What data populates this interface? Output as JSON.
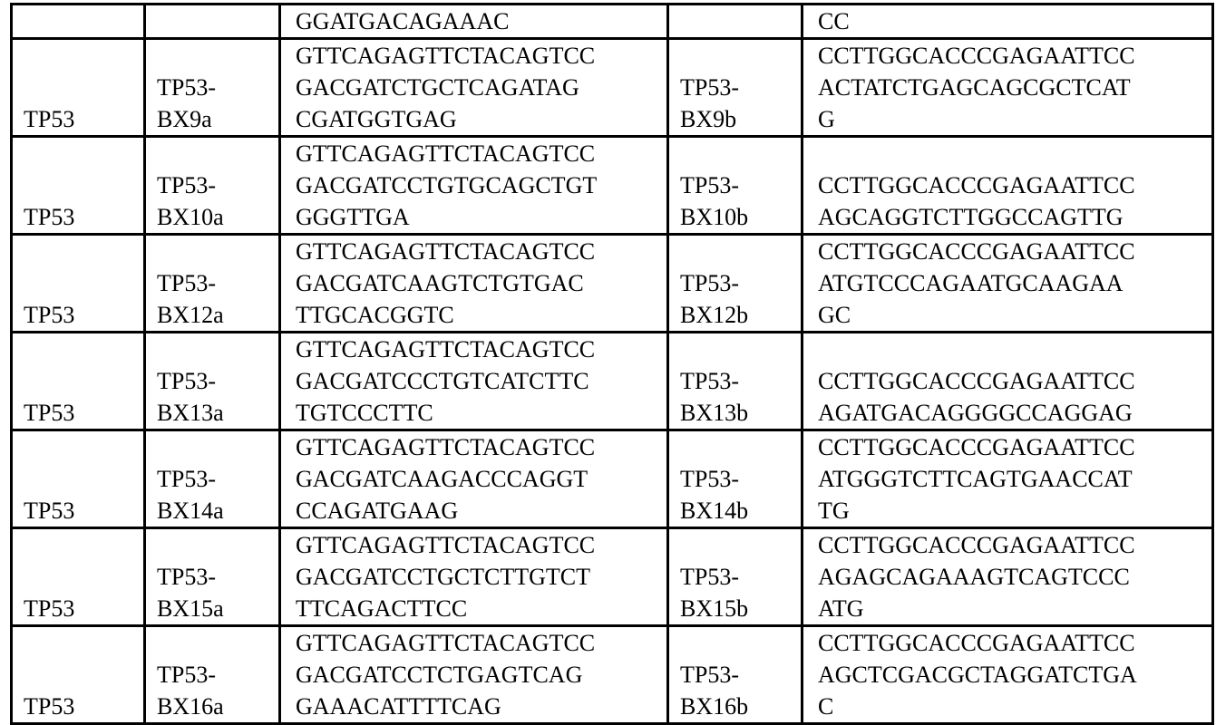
{
  "table": {
    "rows": [
      {
        "gene": "",
        "fwd_name": [],
        "fwd_seq": [
          "GGATGACAGAAAC"
        ],
        "rev_name": [],
        "rev_seq": [
          "CC"
        ]
      },
      {
        "gene": "TP53",
        "fwd_name": [
          "TP53-",
          "BX9a"
        ],
        "fwd_seq": [
          "GTTCAGAGTTCTACAGTCC",
          "GACGATCTGCTCAGATAG",
          "CGATGGTGAG"
        ],
        "rev_name": [
          "TP53-",
          "BX9b"
        ],
        "rev_seq": [
          "CCTTGGCACCCGAGAATTCC",
          "ACTATCTGAGCAGCGCTCAT",
          "G"
        ]
      },
      {
        "gene": "TP53",
        "fwd_name": [
          "TP53-",
          "BX10a"
        ],
        "fwd_seq": [
          "GTTCAGAGTTCTACAGTCC",
          "GACGATCCTGTGCAGCTGT",
          "GGGTTGA"
        ],
        "rev_name": [
          "TP53-",
          "BX10b"
        ],
        "rev_seq": [
          "CCTTGGCACCCGAGAATTCC",
          "AGCAGGTCTTGGCCAGTTG"
        ]
      },
      {
        "gene": "TP53",
        "fwd_name": [
          "TP53-",
          "BX12a"
        ],
        "fwd_seq": [
          "GTTCAGAGTTCTACAGTCC",
          "GACGATCAAGTCTGTGAC",
          "TTGCACGGTC"
        ],
        "rev_name": [
          "TP53-",
          "BX12b"
        ],
        "rev_seq": [
          "CCTTGGCACCCGAGAATTCC",
          "ATGTCCCAGAATGCAAGAA",
          "GC"
        ]
      },
      {
        "gene": "TP53",
        "fwd_name": [
          "TP53-",
          "BX13a"
        ],
        "fwd_seq": [
          "GTTCAGAGTTCTACAGTCC",
          "GACGATCCCTGTCATCTTC",
          "TGTCCCTTC"
        ],
        "rev_name": [
          "TP53-",
          "BX13b"
        ],
        "rev_seq": [
          "CCTTGGCACCCGAGAATTCC",
          "AGATGACAGGGGCCAGGAG"
        ]
      },
      {
        "gene": "TP53",
        "fwd_name": [
          "TP53-",
          "BX14a"
        ],
        "fwd_seq": [
          "GTTCAGAGTTCTACAGTCC",
          "GACGATCAAGACCCAGGT",
          "CCAGATGAAG"
        ],
        "rev_name": [
          "TP53-",
          "BX14b"
        ],
        "rev_seq": [
          "CCTTGGCACCCGAGAATTCC",
          "ATGGGTCTTCAGTGAACCAT",
          "TG"
        ]
      },
      {
        "gene": "TP53",
        "fwd_name": [
          "TP53-",
          "BX15a"
        ],
        "fwd_seq": [
          "GTTCAGAGTTCTACAGTCC",
          "GACGATCCTGCTCTTGTCT",
          "TTCAGACTTCC"
        ],
        "rev_name": [
          "TP53-",
          "BX15b"
        ],
        "rev_seq": [
          "CCTTGGCACCCGAGAATTCC",
          "AGAGCAGAAAGTCAGTCCC",
          "ATG"
        ]
      },
      {
        "gene": "TP53",
        "fwd_name": [
          "TP53-",
          "BX16a"
        ],
        "fwd_seq": [
          "GTTCAGAGTTCTACAGTCC",
          "GACGATCCTCTGAGTCAG",
          "GAAACATTTTCAG"
        ],
        "rev_name": [
          "TP53-",
          "BX16b"
        ],
        "rev_seq": [
          "CCTTGGCACCCGAGAATTCC",
          "AGCTCGACGCTAGGATCTGA",
          "C"
        ]
      }
    ]
  }
}
